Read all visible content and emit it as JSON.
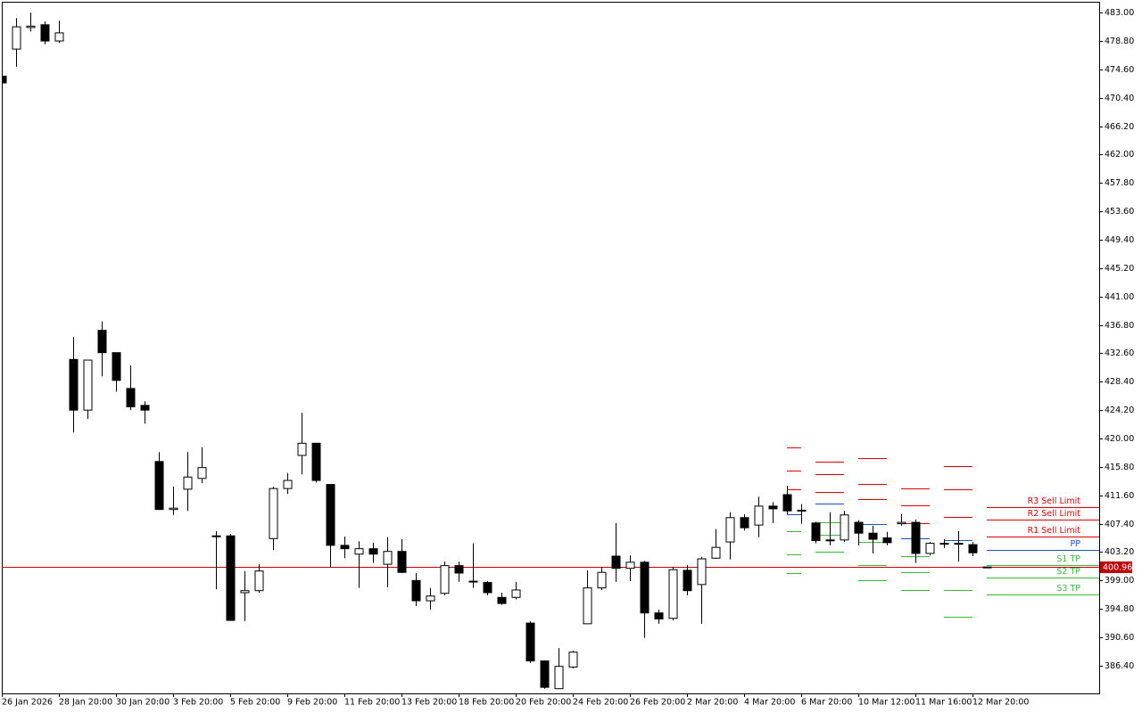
{
  "chart_data": {
    "type": "candlestick",
    "categories": [
      "26 Jan 2026",
      null,
      null,
      null,
      "28 Jan 20:00",
      null,
      null,
      null,
      "30 Jan 20:00",
      null,
      null,
      null,
      "3 Feb 20:00",
      null,
      null,
      null,
      "5 Feb 20:00",
      null,
      null,
      null,
      "9 Feb 20:00",
      null,
      null,
      null,
      "11 Feb 20:00",
      null,
      null,
      null,
      "13 Feb 20:00",
      null,
      null,
      null,
      "18 Feb 20:00",
      null,
      null,
      null,
      "20 Feb 20:00",
      null,
      null,
      null,
      "24 Feb 20:00",
      null,
      null,
      null,
      "26 Feb 20:00",
      null,
      null,
      null,
      "2 Mar 20:00",
      null,
      null,
      null,
      "4 Mar 20:00",
      null,
      null,
      null,
      "6 Mar 20:00",
      null,
      null,
      null,
      "10 Mar 12:00",
      null,
      null,
      null,
      "11 Mar 16:00",
      null,
      null,
      null,
      "12 Mar 20:00",
      null
    ],
    "open": [
      473.6,
      477.6,
      480.8,
      481.2,
      478.8,
      431.7,
      424.2,
      436.0,
      432.7,
      427.4,
      424.9,
      416.6,
      409.5,
      412.5,
      414.1,
      405.6,
      405.6,
      397.2,
      397.5,
      405.2,
      412.6,
      417.5,
      419.3,
      413.2,
      404.2,
      402.9,
      403.7,
      401.4,
      403.3,
      399.0,
      396.0,
      397.1,
      401.2,
      398.9,
      398.7,
      396.5,
      396.5,
      392.7,
      387.1,
      383.0,
      386.2,
      392.6,
      397.9,
      402.6,
      400.8,
      401.7,
      394.2,
      393.4,
      400.5,
      398.4,
      402.3,
      404.7,
      408.3,
      407.2,
      410.0,
      411.7,
      409.4,
      407.5,
      404.9,
      405.0,
      407.6,
      406.0,
      405.3,
      407.4,
      407.6,
      403.0,
      404.5,
      404.5,
      404.3,
      401.0
    ],
    "high": [
      473.6,
      482.2,
      483.0,
      481.7,
      481.8,
      435.0,
      431.6,
      437.3,
      432.7,
      430.8,
      425.5,
      418.0,
      412.9,
      418.0,
      418.7,
      406.3,
      405.9,
      400.4,
      401.4,
      412.9,
      414.9,
      423.8,
      419.3,
      413.2,
      405.5,
      404.8,
      404.6,
      405.4,
      405.1,
      400.1,
      397.9,
      401.8,
      401.8,
      404.5,
      398.9,
      397.2,
      398.8,
      393.0,
      387.2,
      389.0,
      388.6,
      400.5,
      401.0,
      407.5,
      402.7,
      401.9,
      394.7,
      401.0,
      401.3,
      402.5,
      406.6,
      409.1,
      408.8,
      411.4,
      410.6,
      413.0,
      410.3,
      407.7,
      409.1,
      409.3,
      407.9,
      407.1,
      406.2,
      408.8,
      408.0,
      404.7,
      405.1,
      406.3,
      404.7,
      401.0
    ],
    "low": [
      472.6,
      475.0,
      480.2,
      478.3,
      478.5,
      420.9,
      422.9,
      429.2,
      426.9,
      424.2,
      422.2,
      409.5,
      408.7,
      409.3,
      413.4,
      397.7,
      393.1,
      393.0,
      397.2,
      403.5,
      411.8,
      414.7,
      413.5,
      401.0,
      402.3,
      397.9,
      401.6,
      398.0,
      400.1,
      395.2,
      394.7,
      396.8,
      398.8,
      397.9,
      396.8,
      395.4,
      396.2,
      386.8,
      383.0,
      383.0,
      386.0,
      392.6,
      397.6,
      398.8,
      398.9,
      390.5,
      392.6,
      393.1,
      396.8,
      392.6,
      402.2,
      402.1,
      406.4,
      405.4,
      407.5,
      408.8,
      407.4,
      404.5,
      404.2,
      404.7,
      404.2,
      403.0,
      404.2,
      407.1,
      401.6,
      402.7,
      403.8,
      401.8,
      402.6,
      400.9
    ],
    "close": [
      472.6,
      480.9,
      481.0,
      478.8,
      480.0,
      424.2,
      431.6,
      432.7,
      428.6,
      424.7,
      424.2,
      409.5,
      409.7,
      414.3,
      415.7,
      405.5,
      393.1,
      397.5,
      400.4,
      412.6,
      413.8,
      419.3,
      413.8,
      404.2,
      403.7,
      403.7,
      402.9,
      403.3,
      400.2,
      396.0,
      396.7,
      401.2,
      400.1,
      398.8,
      397.2,
      395.6,
      397.6,
      387.1,
      383.2,
      386.3,
      388.4,
      397.9,
      400.2,
      400.8,
      401.7,
      394.2,
      393.3,
      400.6,
      397.5,
      402.2,
      403.9,
      408.3,
      406.8,
      410.0,
      409.6,
      409.3,
      409.3,
      404.9,
      405.0,
      408.7,
      406.0,
      405.1,
      404.6,
      407.6,
      403.0,
      404.5,
      404.4,
      404.4,
      403.1,
      400.96
    ],
    "last_price": 400.96,
    "last_price_color": "#c00000",
    "ylim": [
      382.3,
      484.6
    ],
    "yticks": [
      {
        "value": 386.4,
        "label": "386.40"
      },
      {
        "value": 390.6,
        "label": "390.60"
      },
      {
        "value": 394.8,
        "label": "394.80"
      },
      {
        "value": 399,
        "label": "399.00"
      },
      {
        "value": 403.2,
        "label": "403.20"
      },
      {
        "value": 407.4,
        "label": "407.40"
      },
      {
        "value": 411.6,
        "label": "411.60"
      },
      {
        "value": 415.8,
        "label": "415.80"
      },
      {
        "value": 420,
        "label": "420.00"
      },
      {
        "value": 424.2,
        "label": "424.20"
      },
      {
        "value": 428.4,
        "label": "428.40"
      },
      {
        "value": 432.6,
        "label": "432.60"
      },
      {
        "value": 436.8,
        "label": "436.80"
      },
      {
        "value": 441,
        "label": "441.00"
      },
      {
        "value": 445.2,
        "label": "445.20"
      },
      {
        "value": 449.4,
        "label": "449.40"
      },
      {
        "value": 453.6,
        "label": "453.60"
      },
      {
        "value": 457.8,
        "label": "457.80"
      },
      {
        "value": 462,
        "label": "462.00"
      },
      {
        "value": 466.2,
        "label": "466.20"
      },
      {
        "value": 470.4,
        "label": "470.40"
      },
      {
        "value": 474.6,
        "label": "474.60"
      },
      {
        "value": 478.8,
        "label": "478.80"
      },
      {
        "value": 483,
        "label": "483.00"
      }
    ],
    "pivots": {
      "names": [
        "R3 Sell Limit",
        "R2 Sell Limit",
        "R1 Sell Limit",
        "PP",
        "S1 TP",
        "S2 TP",
        "S3 TP"
      ],
      "colors": [
        "#e00000",
        "#e00000",
        "#e00000",
        "#1a52c8",
        "#3cb83c",
        "#3cb83c",
        "#3cb83c"
      ],
      "days": [
        [
          418.7,
          415.3,
          412.5,
          408.8,
          406.3,
          402.9,
          400.1
        ],
        [
          416.6,
          414.7,
          412.1,
          410.4,
          407.6,
          405.8,
          403.3
        ],
        [
          417.1,
          413.3,
          411.0,
          407.4,
          404.7,
          401.3,
          399.1
        ],
        [
          412.6,
          410.1,
          407.5,
          405.2,
          402.6,
          400.2,
          397.6
        ],
        [
          415.9,
          412.5,
          408.4,
          405.0,
          401.0,
          397.6,
          393.6
        ],
        [
          409.9,
          408.0,
          405.5,
          403.5,
          401.3,
          399.4,
          396.9
        ]
      ]
    }
  }
}
